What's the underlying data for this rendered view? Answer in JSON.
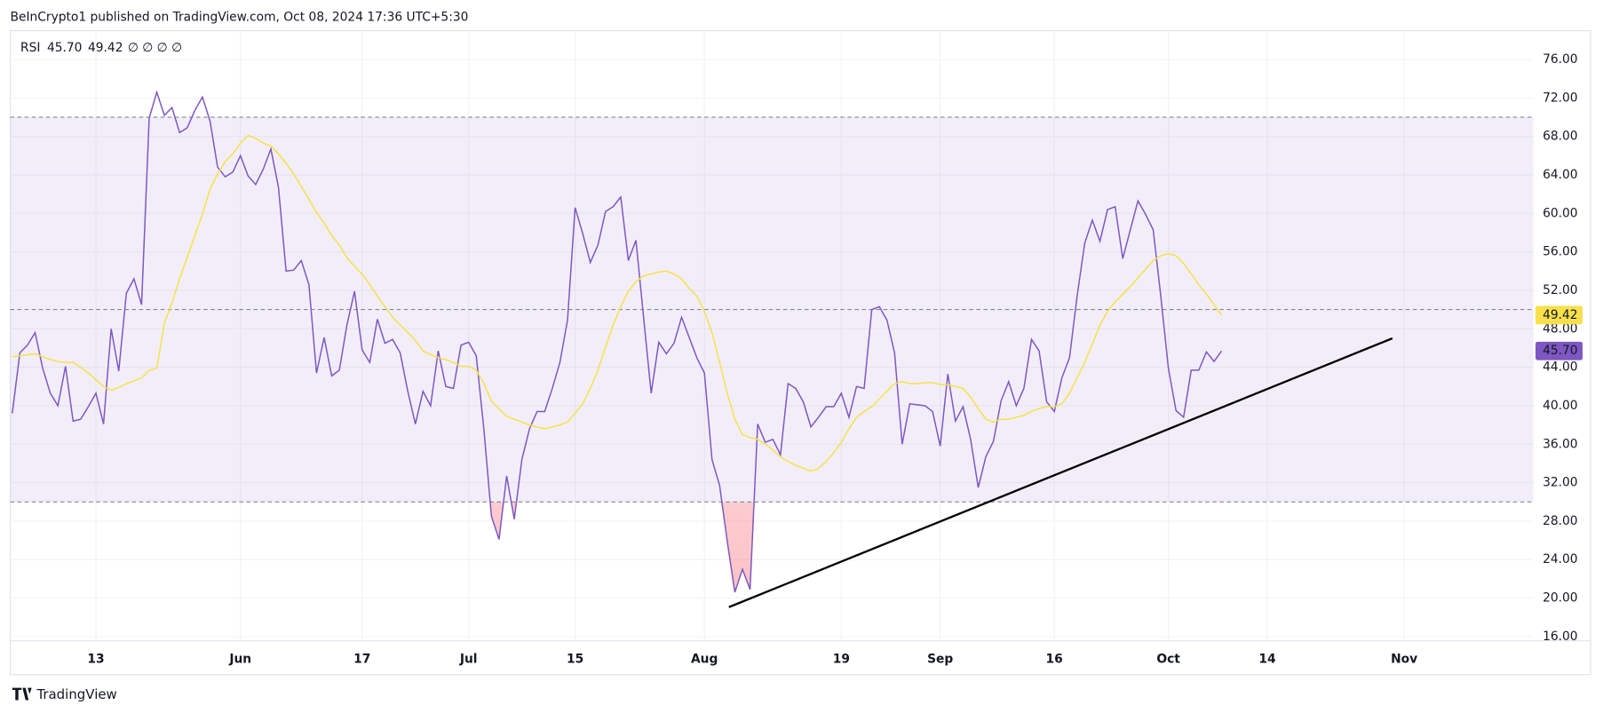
{
  "header": "BeInCrypto1 published on TradingView.com, Oct 08, 2024 17:36 UTC+5:30",
  "footer": "TradingView",
  "chart_data": {
    "type": "line",
    "indicator": "RSI",
    "legend_extra": "∅ ∅ ∅ ∅",
    "ylim": [
      15.5,
      79
    ],
    "yticks": [
      {
        "value": 16,
        "label": "16.00"
      },
      {
        "value": 20,
        "label": "20.00"
      },
      {
        "value": 24,
        "label": "24.00"
      },
      {
        "value": 28,
        "label": "28.00"
      },
      {
        "value": 32,
        "label": "32.00"
      },
      {
        "value": 36,
        "label": "36.00"
      },
      {
        "value": 40,
        "label": "40.00"
      },
      {
        "value": 44,
        "label": "44.00"
      },
      {
        "value": 48,
        "label": "48.00"
      },
      {
        "value": 52,
        "label": "52.00"
      },
      {
        "value": 56,
        "label": "56.00"
      },
      {
        "value": 60,
        "label": "60.00"
      },
      {
        "value": 64,
        "label": "64.00"
      },
      {
        "value": 68,
        "label": "68.00"
      },
      {
        "value": 72,
        "label": "72.00"
      },
      {
        "value": 76,
        "label": "76.00"
      }
    ],
    "hlines": [
      70,
      50,
      30
    ],
    "grid": true,
    "categories": [
      null,
      null,
      null,
      null,
      null,
      null,
      null,
      null,
      null,
      null,
      null,
      "13",
      null,
      null,
      null,
      null,
      null,
      null,
      null,
      null,
      null,
      null,
      null,
      null,
      null,
      null,
      null,
      null,
      null,
      null,
      "Jun",
      null,
      null,
      null,
      null,
      null,
      null,
      null,
      null,
      null,
      null,
      null,
      null,
      null,
      null,
      null,
      "17",
      null,
      null,
      null,
      null,
      null,
      null,
      null,
      null,
      null,
      null,
      null,
      null,
      null,
      "Jul",
      null,
      null,
      null,
      null,
      null,
      null,
      null,
      null,
      null,
      null,
      null,
      null,
      null,
      "15",
      null,
      null,
      null,
      null,
      null,
      null,
      null,
      null,
      null,
      null,
      null,
      null,
      null,
      null,
      null,
      null,
      "Aug",
      null,
      null,
      null,
      null,
      null,
      null,
      null,
      null,
      null,
      null,
      null,
      null,
      null,
      null,
      null,
      null,
      null,
      "19",
      null,
      null,
      null,
      null,
      null,
      null,
      null,
      null,
      null,
      null,
      null,
      null,
      "Sep",
      null,
      null,
      null,
      null,
      null,
      null,
      null,
      null,
      null,
      null,
      null,
      null,
      null,
      null,
      "16",
      null,
      null,
      null,
      null,
      null,
      null,
      null,
      null,
      null,
      null,
      null,
      null,
      null,
      null,
      "Oct",
      null,
      null,
      null,
      null,
      null,
      null,
      null,
      null,
      null,
      null,
      null,
      null,
      "14",
      null,
      null,
      null,
      null,
      null,
      null,
      null,
      null,
      null,
      null,
      null,
      null,
      null,
      null,
      null,
      null,
      null,
      "Nov",
      null,
      null,
      null,
      null,
      null,
      null,
      null,
      null,
      null,
      null,
      null,
      null,
      null,
      null,
      null,
      null,
      null
    ],
    "series": [
      {
        "color": "#7e57c2",
        "last_label": "45.70",
        "values": [
          39.2,
          45.5,
          46.3,
          47.6,
          43.9,
          41.3,
          40.0,
          44.1,
          38.4,
          38.6,
          39.9,
          41.3,
          38.1,
          48.0,
          43.6,
          51.7,
          53.2,
          50.5,
          69.9,
          72.6,
          70.2,
          71.0,
          68.4,
          68.9,
          70.7,
          72.1,
          69.6,
          64.8,
          63.8,
          64.3,
          66.0,
          63.9,
          63.0,
          64.6,
          66.7,
          62.7,
          54.0,
          54.1,
          55.1,
          52.6,
          43.4,
          47.1,
          43.1,
          43.7,
          48.4,
          51.9,
          45.8,
          44.5,
          49.0,
          46.5,
          46.9,
          45.5,
          41.5,
          38.1,
          41.5,
          40.0,
          45.7,
          42.0,
          41.8,
          46.3,
          46.6,
          45.2,
          37.6,
          28.5,
          26.1,
          32.7,
          28.2,
          34.4,
          37.6,
          39.4,
          39.4,
          41.8,
          44.5,
          48.9,
          60.6,
          57.9,
          54.9,
          56.7,
          60.2,
          60.7,
          61.7,
          55.1,
          57.2,
          49.2,
          41.3,
          46.6,
          45.4,
          46.5,
          49.2,
          47.1,
          45.0,
          43.4,
          34.4,
          31.7,
          25.9,
          20.6,
          23.0,
          20.9,
          38.1,
          36.2,
          36.5,
          34.9,
          42.3,
          41.8,
          40.4,
          37.8,
          38.8,
          39.9,
          39.9,
          41.3,
          38.8,
          42.0,
          41.8,
          50.0,
          50.3,
          48.9,
          45.5,
          36.0,
          40.2,
          40.1,
          40.0,
          39.4,
          35.8,
          43.3,
          38.4,
          39.9,
          36.5,
          31.5,
          34.7,
          36.3,
          40.5,
          42.5,
          40.0,
          41.8,
          46.9,
          45.7,
          40.4,
          39.4,
          42.9,
          45.0,
          51.4,
          56.9,
          59.3,
          57.1,
          60.4,
          60.7,
          55.3,
          58.3,
          61.3,
          59.9,
          58.3,
          51.4,
          43.9,
          39.5,
          38.8,
          43.7,
          43.7,
          45.6,
          44.6,
          45.7,
          null,
          null,
          null,
          null,
          null,
          null,
          null,
          null,
          null,
          null,
          null,
          null,
          null,
          null,
          null,
          null,
          null,
          null,
          null,
          null,
          null,
          null,
          null,
          null,
          null,
          null,
          null,
          null,
          null,
          null,
          null,
          null,
          null,
          null,
          null,
          null,
          null,
          null,
          null,
          null,
          null
        ]
      },
      {
        "color": "#f7e04b",
        "last_label": "49.42",
        "values": [
          45.1,
          45.2,
          45.3,
          45.4,
          45.1,
          44.8,
          44.6,
          44.5,
          44.5,
          44.0,
          43.4,
          42.7,
          42.0,
          41.6,
          41.9,
          42.3,
          42.6,
          42.9,
          43.7,
          43.9,
          48.6,
          50.7,
          53.2,
          55.4,
          57.7,
          59.9,
          62.5,
          64.1,
          65.4,
          66.2,
          67.3,
          68.1,
          67.8,
          67.3,
          67.0,
          66.2,
          65.2,
          64.1,
          62.8,
          61.5,
          60.1,
          59.0,
          57.7,
          56.7,
          55.4,
          54.5,
          53.7,
          52.6,
          51.4,
          50.3,
          49.2,
          48.4,
          47.6,
          46.8,
          45.7,
          45.3,
          45.0,
          44.8,
          44.5,
          44.1,
          44.1,
          43.7,
          42.3,
          40.5,
          39.7,
          38.9,
          38.6,
          38.3,
          38.0,
          37.8,
          37.6,
          37.8,
          38.0,
          38.3,
          39.2,
          40.2,
          41.8,
          43.7,
          46.1,
          48.4,
          50.3,
          51.9,
          52.9,
          53.5,
          53.7,
          53.9,
          54.0,
          53.7,
          53.2,
          52.2,
          51.4,
          49.8,
          47.6,
          44.5,
          41.3,
          38.6,
          37.0,
          36.7,
          36.5,
          36.0,
          35.4,
          34.7,
          34.2,
          33.8,
          33.5,
          33.2,
          33.5,
          34.2,
          35.1,
          36.2,
          37.6,
          38.8,
          39.4,
          39.9,
          40.7,
          41.5,
          42.3,
          42.5,
          42.3,
          42.3,
          42.4,
          42.4,
          42.2,
          42.2,
          42.0,
          41.8,
          40.9,
          39.7,
          38.6,
          38.3,
          38.6,
          38.6,
          38.8,
          39.0,
          39.4,
          39.7,
          39.9,
          39.9,
          40.2,
          41.3,
          42.9,
          44.5,
          46.4,
          48.4,
          49.8,
          50.8,
          51.6,
          52.4,
          53.3,
          54.2,
          55.1,
          55.6,
          55.8,
          55.6,
          54.8,
          53.7,
          52.6,
          51.6,
          50.5,
          49.42,
          null,
          null,
          null,
          null,
          null,
          null,
          null,
          null,
          null,
          null,
          null,
          null,
          null,
          null,
          null,
          null,
          null,
          null,
          null,
          null,
          null,
          null,
          null,
          null,
          null,
          null,
          null,
          null,
          null,
          null,
          null,
          null,
          null,
          null,
          null,
          null,
          null,
          null,
          null,
          null,
          null
        ]
      }
    ]
  }
}
